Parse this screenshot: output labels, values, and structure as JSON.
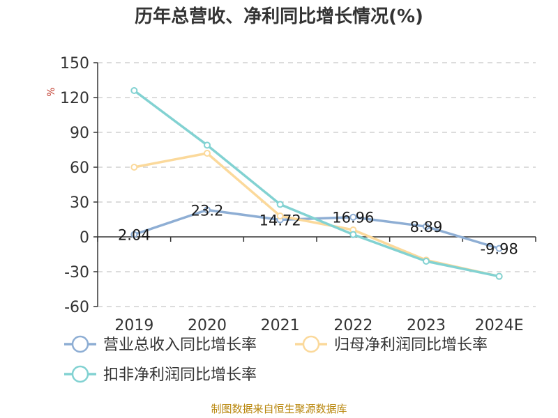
{
  "chart_data": {
    "type": "line",
    "title": "历年总营收、净利同比增长情况(%)",
    "ylabel": "%",
    "categories": [
      "2019",
      "2020",
      "2021",
      "2022",
      "2023",
      "2024E"
    ],
    "yticks": [
      "150",
      "120",
      "90",
      "60",
      "30",
      "0",
      "-30",
      "-60"
    ],
    "ylim": [
      -60,
      150
    ],
    "grid": true,
    "legend_position": "bottom",
    "series": [
      {
        "name": "营业总收入同比增长率",
        "color": "#8eaed4",
        "values": [
          2.04,
          23.2,
          14.72,
          16.96,
          8.89,
          -9.98
        ],
        "data_labels": [
          "2.04",
          "23.2",
          "14.72",
          "16.96",
          "8.89",
          "-9.98"
        ]
      },
      {
        "name": "归母净利润同比增长率",
        "color": "#fbd99b",
        "values": [
          60,
          72,
          18,
          6,
          -20,
          -34
        ]
      },
      {
        "name": "扣非净利润同比增长率",
        "color": "#82d2d2",
        "values": [
          126,
          79,
          28,
          2,
          -21,
          -34
        ]
      }
    ]
  },
  "source": "制图数据来自恒生聚源数据库"
}
